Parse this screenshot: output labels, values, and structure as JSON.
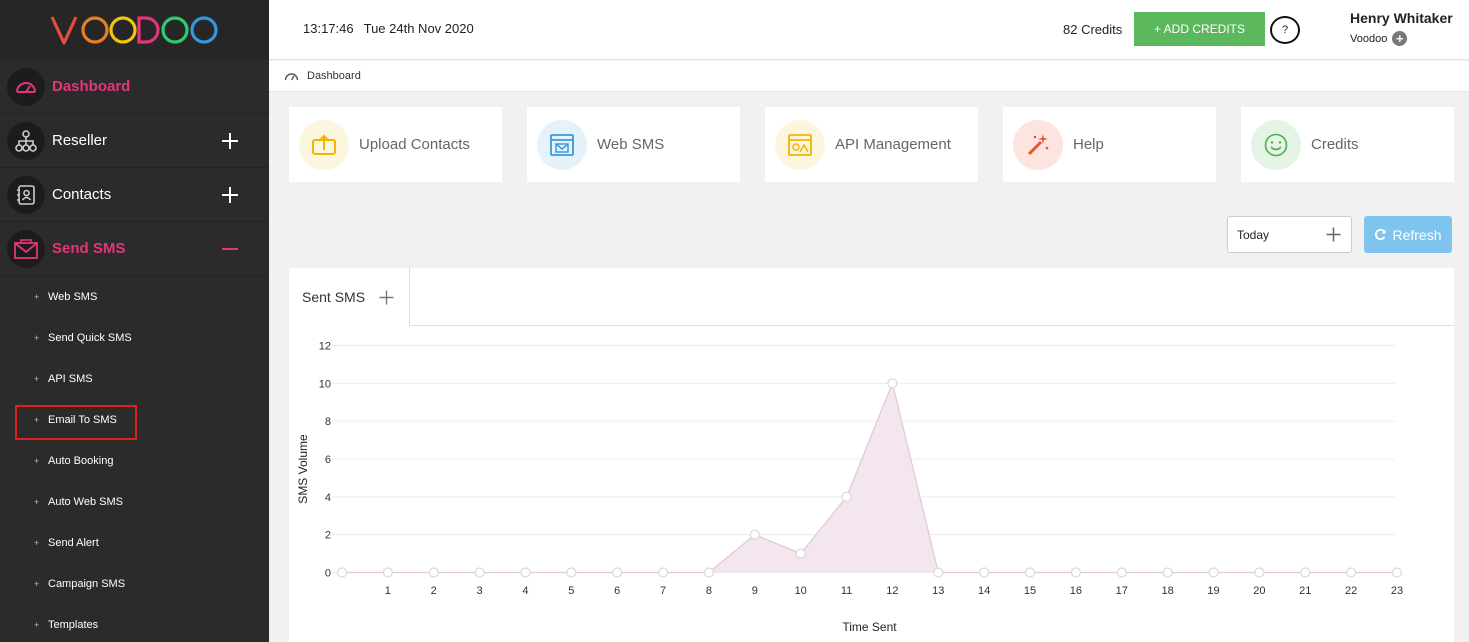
{
  "brand": {
    "logo_text": "VOODOO",
    "accent": "#e5357a",
    "logo_colors": [
      "#e74c3c",
      "#e67e22",
      "#f1c40f",
      "#e5357a",
      "#2ecc71",
      "#3498db"
    ]
  },
  "sidebar": {
    "main": [
      {
        "label": "Dashboard",
        "icon": "gauge-icon",
        "toggle": "",
        "active": true
      },
      {
        "label": "Reseller",
        "icon": "network-icon",
        "toggle": "+",
        "active": false
      },
      {
        "label": "Contacts",
        "icon": "contacts-book-icon",
        "toggle": "+",
        "active": false
      },
      {
        "label": "Send SMS",
        "icon": "envelope-icon",
        "toggle": "−",
        "active": true
      }
    ],
    "sub_items": [
      {
        "label": "Web SMS"
      },
      {
        "label": "Send Quick SMS"
      },
      {
        "label": "API SMS"
      },
      {
        "label": "Email To SMS",
        "highlighted": true
      },
      {
        "label": "Auto Booking"
      },
      {
        "label": "Auto Web SMS"
      },
      {
        "label": "Send Alert"
      },
      {
        "label": "Campaign SMS"
      },
      {
        "label": "Templates"
      }
    ],
    "sub_bullet": "+"
  },
  "topbar": {
    "time": "13:17:46",
    "date": "Tue 24th Nov 2020",
    "credits_count": "82",
    "credits_label": "Credits",
    "add_credits_label": "+ ADD CREDITS",
    "help_label": "?",
    "user_name": "Henry Whitaker",
    "user_org": "Voodoo"
  },
  "breadcrumb": {
    "label": "Dashboard"
  },
  "quick_cards": [
    {
      "label": "Upload Contacts",
      "icon": "upload-icon",
      "bg": "#fdf6df",
      "color": "#f2b400"
    },
    {
      "label": "Web SMS",
      "icon": "browser-mail-icon",
      "bg": "#e6f2fa",
      "color": "#3a9ad9"
    },
    {
      "label": "API Management",
      "icon": "api-window-icon",
      "bg": "#fdf6df",
      "color": "#f2b400"
    },
    {
      "label": "Help",
      "icon": "magic-wand-icon",
      "bg": "#fbe5de",
      "color": "#e8542e"
    },
    {
      "label": "Credits",
      "icon": "smiley-icon",
      "bg": "#e5f4e4",
      "color": "#4caf50"
    }
  ],
  "controls": {
    "range_label": "Today",
    "refresh_label": "Refresh"
  },
  "panel": {
    "tab_label": "Sent SMS"
  },
  "chart_data": {
    "type": "area",
    "title": "",
    "xlabel": "Time Sent",
    "ylabel": "SMS Volume",
    "x": [
      0,
      1,
      2,
      3,
      4,
      5,
      6,
      7,
      8,
      9,
      10,
      11,
      12,
      13,
      14,
      15,
      16,
      17,
      18,
      19,
      20,
      21,
      22,
      23
    ],
    "x_tick_labels": [
      "",
      "1",
      "2",
      "3",
      "4",
      "5",
      "6",
      "7",
      "8",
      "9",
      "10",
      "11",
      "12",
      "13",
      "14",
      "15",
      "16",
      "17",
      "18",
      "19",
      "20",
      "21",
      "22",
      "23"
    ],
    "series": [
      {
        "values": [
          0,
          0,
          0,
          0,
          0,
          0,
          0,
          0,
          0,
          2,
          1,
          4,
          10,
          0,
          0,
          0,
          0,
          0,
          0,
          0,
          0,
          0,
          0,
          0
        ]
      }
    ],
    "ylim": [
      0,
      12
    ],
    "yticks": [
      0,
      2,
      4,
      6,
      8,
      10,
      12
    ],
    "grid": true,
    "fill_color": "#f3e6ee",
    "line_color": "#e0c8d4"
  }
}
